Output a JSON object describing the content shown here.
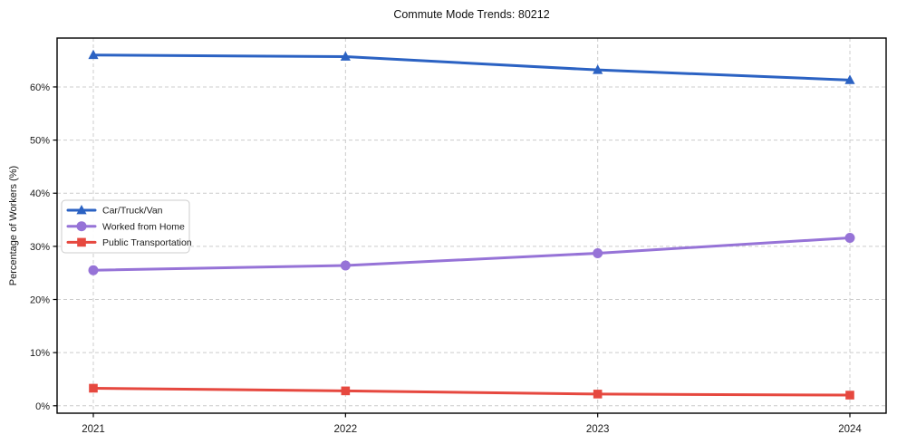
{
  "chart_data": {
    "type": "line",
    "title": "Commute Mode Trends: 80212",
    "xlabel": "",
    "ylabel": "Percentage of Workers (%)",
    "categories": [
      "2021",
      "2022",
      "2023",
      "2024"
    ],
    "y_ticks": [
      0,
      10,
      20,
      30,
      40,
      50,
      60
    ],
    "y_tick_labels": [
      "0%",
      "10%",
      "20%",
      "30%",
      "40%",
      "50%",
      "60%"
    ],
    "ylim": [
      -1.4,
      69.2
    ],
    "grid": "dashed-both",
    "legend_position": "center-left",
    "series": [
      {
        "name": "Car/Truck/Van",
        "color": "#2b62c3",
        "marker": "triangle",
        "values": [
          66.0,
          65.7,
          63.2,
          61.3
        ]
      },
      {
        "name": "Worked from Home",
        "color": "#9673d7",
        "marker": "circle",
        "values": [
          25.5,
          26.4,
          28.7,
          31.6
        ]
      },
      {
        "name": "Public Transportation",
        "color": "#e6483f",
        "marker": "square",
        "values": [
          3.3,
          2.8,
          2.2,
          2.0
        ]
      }
    ]
  },
  "style_colors": {
    "grid": "#cccccc",
    "spine": "#000000",
    "legend_border": "#cccccc",
    "legend_bg": "#ffffff",
    "text": "#1a1a1a"
  }
}
